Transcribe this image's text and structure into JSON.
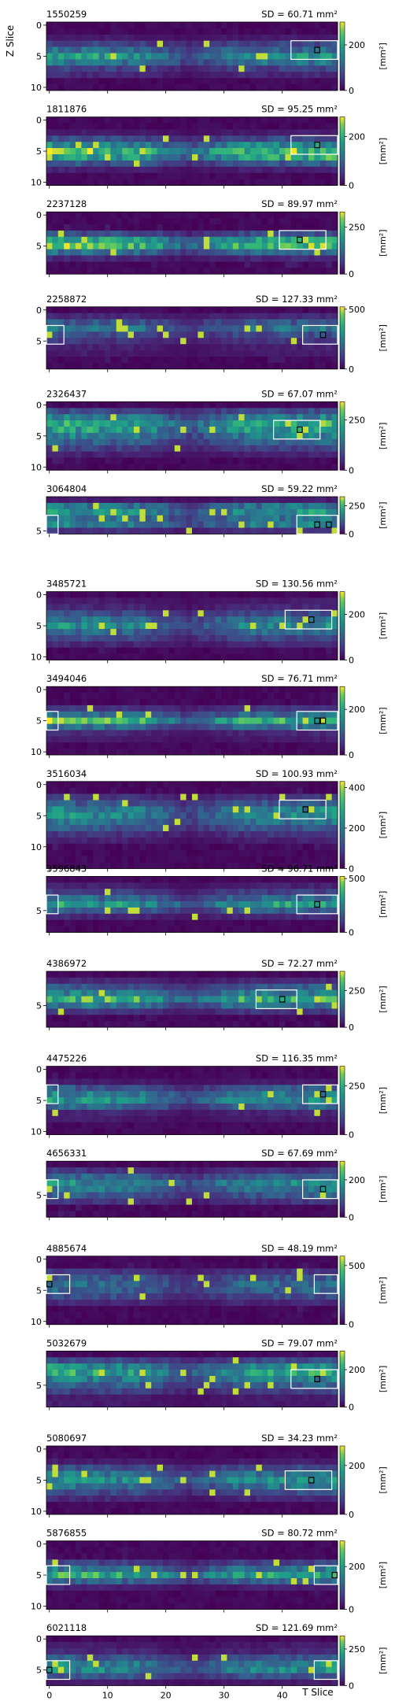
{
  "figure": {
    "y_axis_label": "Z Slice",
    "x_axis_label": "T Slice",
    "colorbar_unit": "[mm²]",
    "colormap": "viridis",
    "x_ticks": [
      0,
      10,
      20,
      30,
      40
    ],
    "x_range": [
      0,
      49
    ]
  },
  "chart_data": [
    {
      "type": "heatmap",
      "id": "1550259",
      "sd_label": "SD = 60.71 mm²",
      "rows": 11,
      "yticks": [
        0,
        5,
        10
      ],
      "cbar_max": 300,
      "cbar_ticks": [
        0,
        200
      ],
      "profile": [
        [
          0,
          0.02
        ],
        [
          2,
          0.1
        ],
        [
          4,
          0.45
        ],
        [
          5,
          0.7
        ],
        [
          6,
          0.5
        ],
        [
          7,
          0.25
        ],
        [
          9,
          0.05
        ]
      ],
      "roi": {
        "x0": 42,
        "x1": 49,
        "y0": 3,
        "y1": 5
      },
      "markers": [
        [
          46,
          4
        ]
      ]
    },
    {
      "type": "heatmap",
      "id": "1811876",
      "sd_label": "SD = 95.25 mm²",
      "rows": 11,
      "yticks": [
        0,
        5,
        10
      ],
      "cbar_max": 280,
      "cbar_ticks": [
        0,
        200
      ],
      "profile": [
        [
          0,
          0.02
        ],
        [
          2,
          0.1
        ],
        [
          3,
          0.3
        ],
        [
          4,
          0.6
        ],
        [
          5,
          0.9
        ],
        [
          6,
          0.75
        ],
        [
          7,
          0.35
        ],
        [
          8,
          0.12
        ],
        [
          9,
          0.05
        ]
      ],
      "roi": {
        "x0": 42,
        "x1": 49,
        "y0": 3,
        "y1": 5
      },
      "markers": [
        [
          46,
          4
        ]
      ]
    },
    {
      "type": "heatmap",
      "id": "2237128",
      "sd_label": "SD = 89.97 mm²",
      "rows": 10,
      "yticks": [
        0,
        5
      ],
      "cbar_max": 330,
      "cbar_ticks": [
        0,
        250
      ],
      "profile": [
        [
          0,
          0.02
        ],
        [
          2,
          0.08
        ],
        [
          3,
          0.3
        ],
        [
          4,
          0.7
        ],
        [
          5,
          0.85
        ],
        [
          6,
          0.45
        ],
        [
          7,
          0.15
        ],
        [
          9,
          0.03
        ]
      ],
      "roi": {
        "x0": 40,
        "x1": 47,
        "y0": 3,
        "y1": 5
      },
      "markers": [
        [
          43,
          4
        ]
      ]
    },
    {
      "type": "heatmap",
      "id": "2258872",
      "sd_label": "SD = 127.33 mm²",
      "rows": 10,
      "yticks": [
        0,
        5
      ],
      "cbar_max": 520,
      "cbar_ticks": [
        0,
        500
      ],
      "profile": [
        [
          0,
          0.05
        ],
        [
          1,
          0.15
        ],
        [
          2,
          0.35
        ],
        [
          3,
          0.5
        ],
        [
          4,
          0.3
        ],
        [
          5,
          0.2
        ],
        [
          6,
          0.12
        ],
        [
          7,
          0.1
        ],
        [
          8,
          0.08
        ],
        [
          9,
          0.05
        ]
      ],
      "roi": {
        "x0": 44,
        "x1": 49,
        "y0": 3,
        "y1": 5
      },
      "roi2": {
        "x0": 0,
        "x1": 2,
        "y0": 3,
        "y1": 5
      },
      "markers": [
        [
          47,
          4
        ]
      ]
    },
    {
      "type": "heatmap",
      "id": "2326437",
      "sd_label": "SD = 67.07 mm²",
      "rows": 11,
      "yticks": [
        0,
        5,
        10
      ],
      "cbar_max": 340,
      "cbar_ticks": [
        0,
        250
      ],
      "profile": [
        [
          0,
          0.05
        ],
        [
          1,
          0.3
        ],
        [
          2,
          0.55
        ],
        [
          3,
          0.8
        ],
        [
          4,
          0.7
        ],
        [
          5,
          0.55
        ],
        [
          6,
          0.4
        ],
        [
          7,
          0.25
        ],
        [
          8,
          0.12
        ],
        [
          10,
          0.05
        ]
      ],
      "roi": {
        "x0": 39,
        "x1": 46,
        "y0": 3,
        "y1": 5
      },
      "markers": [
        [
          43,
          4
        ]
      ]
    },
    {
      "type": "heatmap",
      "id": "3064804",
      "sd_label": "SD = 59.22 mm²",
      "rows": 6,
      "yticks": [
        5
      ],
      "cbar_max": 330,
      "cbar_ticks": [
        0,
        250
      ],
      "profile": [
        [
          0,
          0.1
        ],
        [
          1,
          0.5
        ],
        [
          2,
          0.65
        ],
        [
          3,
          0.5
        ],
        [
          4,
          0.55
        ],
        [
          5,
          0.2
        ],
        [
          6,
          0.05
        ]
      ],
      "roi": {
        "x0": 43,
        "x1": 49,
        "y0": 3,
        "y1": 5
      },
      "roi2": {
        "x0": 0,
        "x1": 1,
        "y0": 3,
        "y1": 5
      },
      "markers": [
        [
          46,
          4
        ],
        [
          48,
          4
        ]
      ]
    },
    {
      "type": "heatmap",
      "id": "3485721",
      "sd_label": "SD = 130.56 mm²",
      "rows": 11,
      "yticks": [
        0,
        5,
        10
      ],
      "cbar_max": 300,
      "cbar_ticks": [
        0,
        200
      ],
      "profile": [
        [
          0,
          0.05
        ],
        [
          2,
          0.15
        ],
        [
          3,
          0.3
        ],
        [
          4,
          0.5
        ],
        [
          5,
          0.6
        ],
        [
          6,
          0.45
        ],
        [
          7,
          0.3
        ],
        [
          8,
          0.15
        ],
        [
          9,
          0.08
        ],
        [
          10,
          0.03
        ]
      ],
      "roi": {
        "x0": 41,
        "x1": 48,
        "y0": 3,
        "y1": 5
      },
      "markers": [
        [
          45,
          4
        ]
      ]
    },
    {
      "type": "heatmap",
      "id": "3494046",
      "sd_label": "SD = 76.71 mm²",
      "rows": 11,
      "yticks": [
        0,
        5,
        10
      ],
      "cbar_max": 300,
      "cbar_ticks": [
        0,
        200
      ],
      "profile": [
        [
          0,
          0.03
        ],
        [
          2,
          0.08
        ],
        [
          3,
          0.2
        ],
        [
          4,
          0.45
        ],
        [
          5,
          0.85
        ],
        [
          6,
          0.45
        ],
        [
          7,
          0.15
        ],
        [
          9,
          0.05
        ]
      ],
      "roi": {
        "x0": 43,
        "x1": 49,
        "y0": 4,
        "y1": 6
      },
      "roi2": {
        "x0": 0,
        "x1": 1,
        "y0": 4,
        "y1": 6
      },
      "markers": [
        [
          46,
          5
        ],
        [
          47,
          5
        ]
      ]
    },
    {
      "type": "heatmap",
      "id": "3516034",
      "sd_label": "SD = 100.93 mm²",
      "rows": 14,
      "yticks": [
        0,
        5,
        10
      ],
      "cbar_max": 430,
      "cbar_ticks": [
        0,
        200,
        400
      ],
      "profile": [
        [
          0,
          0.03
        ],
        [
          1,
          0.08
        ],
        [
          2,
          0.2
        ],
        [
          3,
          0.35
        ],
        [
          4,
          0.55
        ],
        [
          5,
          0.6
        ],
        [
          6,
          0.5
        ],
        [
          7,
          0.35
        ],
        [
          8,
          0.2
        ],
        [
          9,
          0.12
        ],
        [
          11,
          0.05
        ]
      ],
      "roi": {
        "x0": 40,
        "x1": 47,
        "y0": 3,
        "y1": 5
      },
      "markers": [
        [
          44,
          4
        ]
      ]
    },
    {
      "type": "heatmap",
      "id": "3596843",
      "sd_label": "SD = 96.71 mm²",
      "rows": 9,
      "yticks": [
        5
      ],
      "cbar_max": 520,
      "cbar_ticks": [
        0,
        500
      ],
      "profile": [
        [
          0,
          0.05
        ],
        [
          1,
          0.12
        ],
        [
          2,
          0.25
        ],
        [
          3,
          0.45
        ],
        [
          4,
          0.7
        ],
        [
          5,
          0.4
        ],
        [
          6,
          0.15
        ],
        [
          7,
          0.05
        ]
      ],
      "roi": {
        "x0": 43,
        "x1": 49,
        "y0": 3,
        "y1": 5
      },
      "roi2": {
        "x0": 0,
        "x1": 1,
        "y0": 3,
        "y1": 5
      },
      "markers": [
        [
          46,
          4
        ]
      ]
    },
    {
      "type": "heatmap",
      "id": "4386972",
      "sd_label": "SD = 72.27 mm²",
      "rows": 9,
      "yticks": [
        5
      ],
      "cbar_max": 380,
      "cbar_ticks": [
        0,
        250
      ],
      "profile": [
        [
          0,
          0.05
        ],
        [
          1,
          0.15
        ],
        [
          2,
          0.35
        ],
        [
          3,
          0.55
        ],
        [
          4,
          0.85
        ],
        [
          5,
          0.5
        ],
        [
          6,
          0.2
        ],
        [
          7,
          0.08
        ]
      ],
      "roi": {
        "x0": 36,
        "x1": 42,
        "y0": 3,
        "y1": 5
      },
      "markers": [
        [
          40,
          4
        ]
      ]
    },
    {
      "type": "heatmap",
      "id": "4475226",
      "sd_label": "SD = 116.35 mm²",
      "rows": 11,
      "yticks": [
        0,
        5,
        10
      ],
      "cbar_max": 350,
      "cbar_ticks": [
        0,
        250
      ],
      "profile": [
        [
          0,
          0.03
        ],
        [
          2,
          0.1
        ],
        [
          3,
          0.35
        ],
        [
          4,
          0.55
        ],
        [
          5,
          0.65
        ],
        [
          6,
          0.4
        ],
        [
          7,
          0.15
        ],
        [
          9,
          0.05
        ]
      ],
      "roi": {
        "x0": 44,
        "x1": 49,
        "y0": 3,
        "y1": 5
      },
      "roi2": {
        "x0": 0,
        "x1": 1,
        "y0": 3,
        "y1": 5
      },
      "markers": [
        [
          47,
          4
        ]
      ]
    },
    {
      "type": "heatmap",
      "id": "4656331",
      "sd_label": "SD = 67.69 mm²",
      "rows": 9,
      "yticks": [
        5
      ],
      "cbar_max": 300,
      "cbar_ticks": [
        0,
        200
      ],
      "profile": [
        [
          0,
          0.05
        ],
        [
          1,
          0.2
        ],
        [
          2,
          0.4
        ],
        [
          3,
          0.6
        ],
        [
          4,
          0.5
        ],
        [
          5,
          0.35
        ],
        [
          6,
          0.2
        ],
        [
          7,
          0.08
        ]
      ],
      "roi": {
        "x0": 44,
        "x1": 49,
        "y0": 3,
        "y1": 5
      },
      "roi2": {
        "x0": 0,
        "x1": 1,
        "y0": 3,
        "y1": 5
      },
      "markers": [
        [
          47,
          4
        ]
      ]
    },
    {
      "type": "heatmap",
      "id": "4885674",
      "sd_label": "SD = 48.19 mm²",
      "rows": 11,
      "yticks": [
        0,
        5,
        10
      ],
      "cbar_max": 580,
      "cbar_ticks": [
        0,
        500
      ],
      "profile": [
        [
          0,
          0.03
        ],
        [
          1,
          0.08
        ],
        [
          2,
          0.2
        ],
        [
          3,
          0.35
        ],
        [
          4,
          0.45
        ],
        [
          5,
          0.4
        ],
        [
          6,
          0.3
        ],
        [
          7,
          0.15
        ],
        [
          8,
          0.08
        ],
        [
          10,
          0.03
        ]
      ],
      "roi": {
        "x0": 0,
        "x1": 3,
        "y0": 3,
        "y1": 5
      },
      "roi2": {
        "x0": 46,
        "x1": 49,
        "y0": 3,
        "y1": 5
      },
      "markers": [
        [
          0,
          4
        ]
      ]
    },
    {
      "type": "heatmap",
      "id": "5032679",
      "sd_label": "SD = 79.07 mm²",
      "rows": 9,
      "yticks": [
        5
      ],
      "cbar_max": 300,
      "cbar_ticks": [
        0,
        200
      ],
      "profile": [
        [
          0,
          0.08
        ],
        [
          1,
          0.3
        ],
        [
          2,
          0.6
        ],
        [
          3,
          0.75
        ],
        [
          4,
          0.55
        ],
        [
          5,
          0.4
        ],
        [
          6,
          0.25
        ],
        [
          7,
          0.1
        ]
      ],
      "roi": {
        "x0": 42,
        "x1": 49,
        "y0": 3,
        "y1": 5
      },
      "markers": [
        [
          46,
          4
        ]
      ]
    },
    {
      "type": "heatmap",
      "id": "5080697",
      "sd_label": "SD = 34.23 mm²",
      "rows": 11,
      "yticks": [
        0,
        5,
        10
      ],
      "cbar_max": 280,
      "cbar_ticks": [
        0,
        200
      ],
      "profile": [
        [
          0,
          0.03
        ],
        [
          2,
          0.1
        ],
        [
          3,
          0.3
        ],
        [
          4,
          0.5
        ],
        [
          5,
          0.65
        ],
        [
          6,
          0.5
        ],
        [
          7,
          0.3
        ],
        [
          8,
          0.15
        ],
        [
          9,
          0.05
        ]
      ],
      "roi": {
        "x0": 41,
        "x1": 48,
        "y0": 4,
        "y1": 6
      },
      "markers": [
        [
          45,
          5
        ]
      ]
    },
    {
      "type": "heatmap",
      "id": "5876855",
      "sd_label": "SD = 80.72 mm²",
      "rows": 11,
      "yticks": [
        0,
        5,
        10
      ],
      "cbar_max": 320,
      "cbar_ticks": [
        0,
        200
      ],
      "profile": [
        [
          0,
          0.03
        ],
        [
          2,
          0.08
        ],
        [
          3,
          0.25
        ],
        [
          4,
          0.5
        ],
        [
          5,
          0.8
        ],
        [
          6,
          0.4
        ],
        [
          7,
          0.12
        ],
        [
          9,
          0.04
        ]
      ],
      "roi": {
        "x0": 46,
        "x1": 49,
        "y0": 4,
        "y1": 6
      },
      "roi2": {
        "x0": 0,
        "x1": 3,
        "y0": 4,
        "y1": 6
      },
      "markers": [
        [
          49,
          5
        ]
      ]
    },
    {
      "type": "heatmap",
      "id": "6021118",
      "sd_label": "SD = 121.69 mm²",
      "rows": 8,
      "yticks": [
        0,
        5
      ],
      "cbar_max": 340,
      "cbar_ticks": [
        0,
        250
      ],
      "profile": [
        [
          0,
          0.05
        ],
        [
          2,
          0.15
        ],
        [
          3,
          0.35
        ],
        [
          4,
          0.55
        ],
        [
          5,
          0.6
        ],
        [
          6,
          0.35
        ],
        [
          7,
          0.1
        ]
      ],
      "roi": {
        "x0": 0,
        "x1": 3,
        "y0": 4,
        "y1": 6
      },
      "roi2": {
        "x0": 46,
        "x1": 49,
        "y0": 4,
        "y1": 6
      },
      "markers": [
        [
          0,
          5
        ]
      ]
    }
  ]
}
